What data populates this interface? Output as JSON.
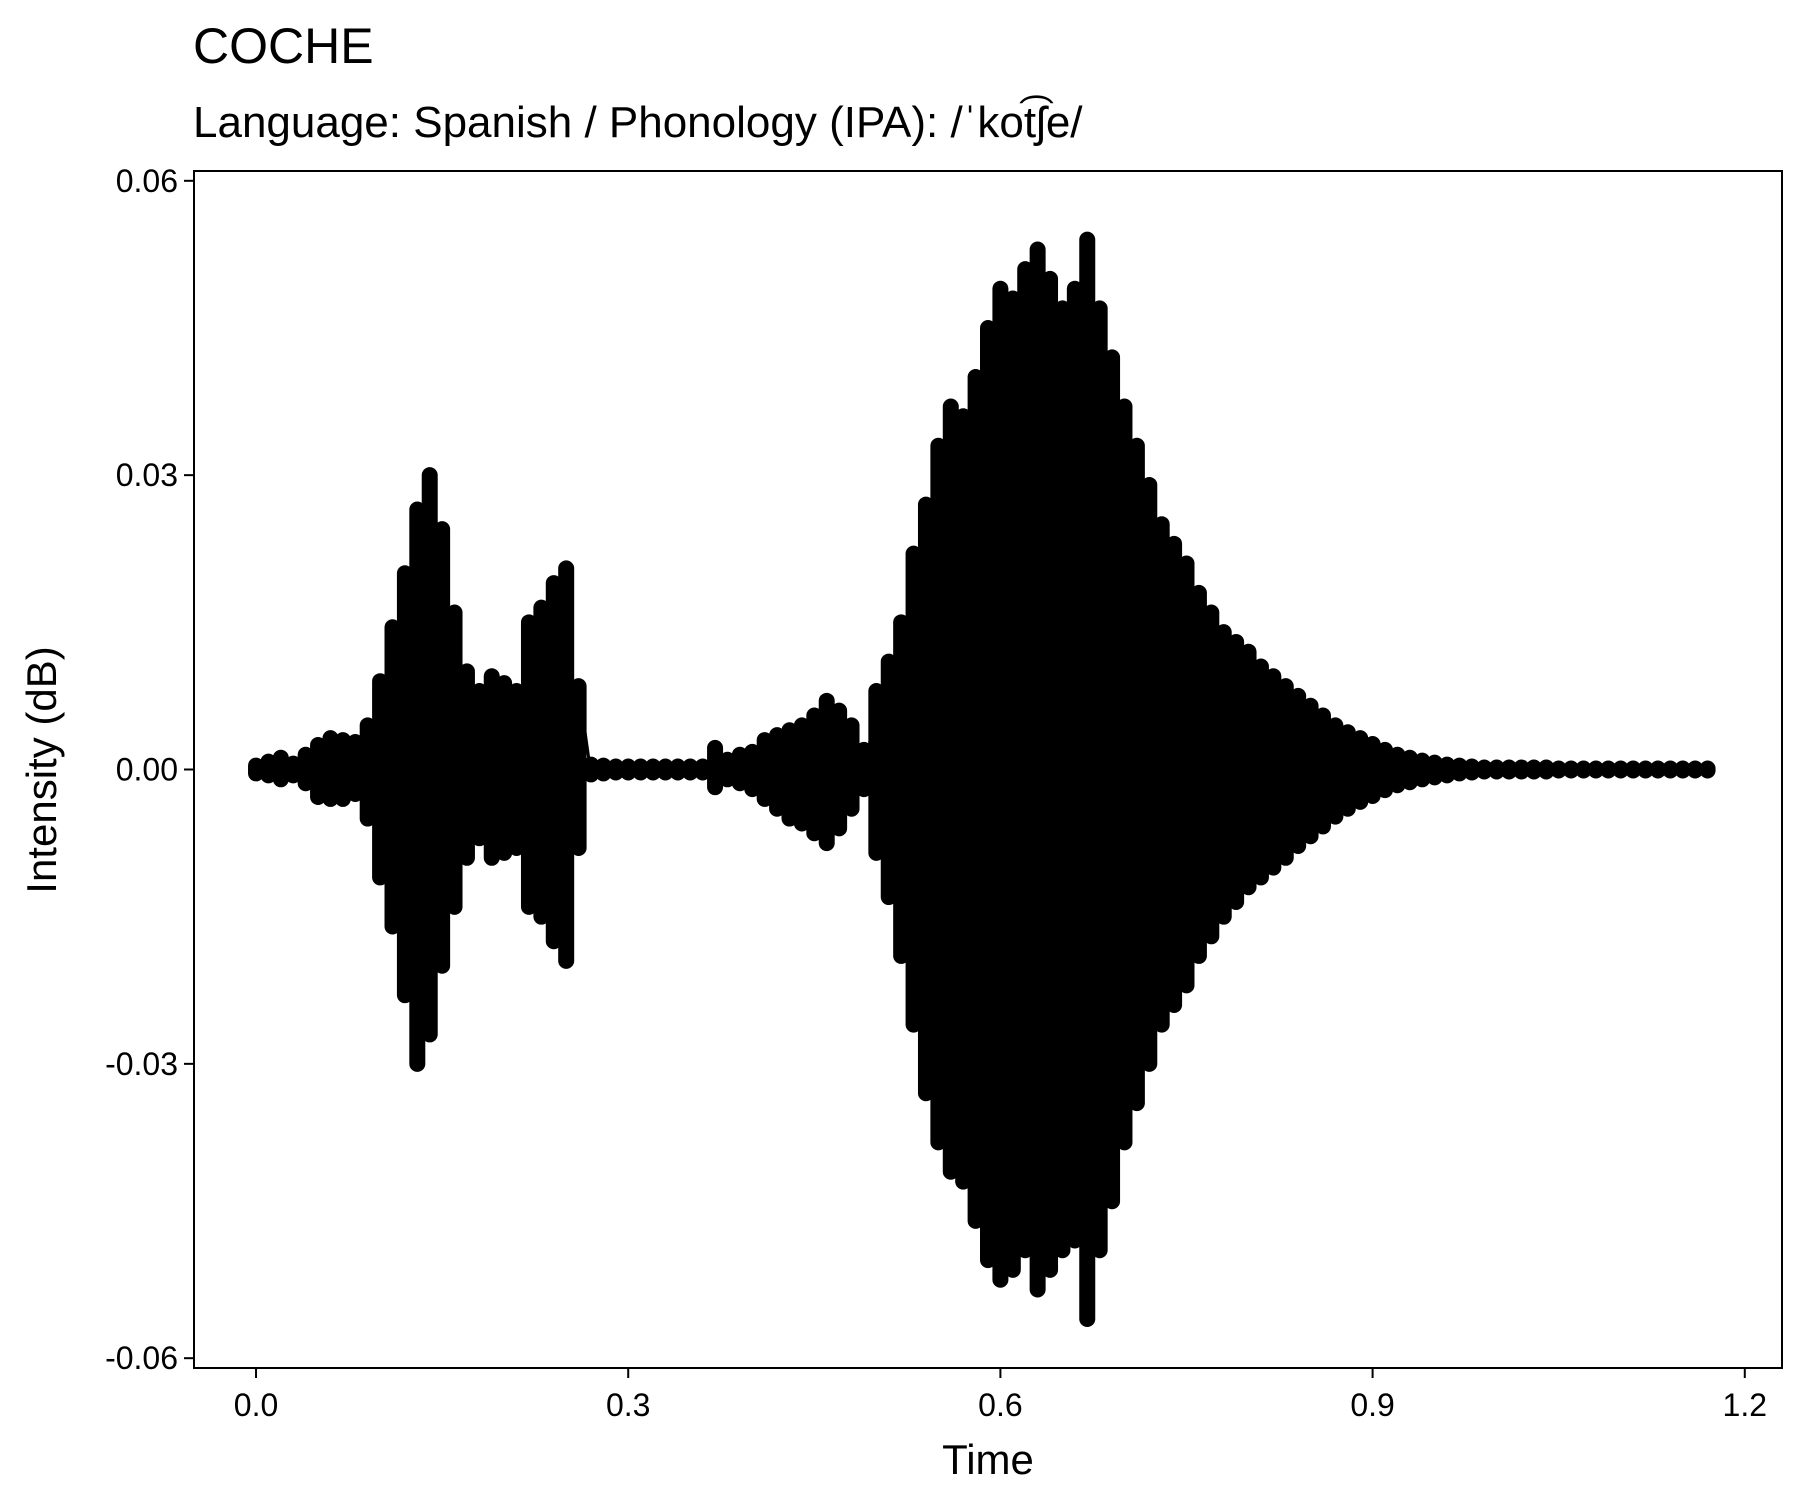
{
  "chart_data": {
    "type": "line",
    "title": "COCHE",
    "subtitle": "Language: Spanish / Phonology (IPA): /ˈkot͡ʃe/",
    "xlabel": "Time",
    "ylabel": "Intensity (dB)",
    "xlim": [
      -0.05,
      1.23
    ],
    "ylim": [
      -0.061,
      0.061
    ],
    "x_ticks": [
      0.0,
      0.3,
      0.6,
      0.9,
      1.2
    ],
    "x_tick_labels": [
      "0.0",
      "0.3",
      "0.6",
      "0.9",
      "1.2"
    ],
    "y_ticks": [
      0.06,
      0.03,
      0.0,
      -0.03,
      -0.06
    ],
    "y_tick_labels": [
      "0.06",
      "0.03",
      "0.00",
      "-0.03",
      "-0.06"
    ],
    "grid": false,
    "line_color": "#000000",
    "series": [
      {
        "values_note_free": true,
        "x": [
          0.0,
          0.01,
          0.02,
          0.03,
          0.04,
          0.05,
          0.06,
          0.07,
          0.08,
          0.09,
          0.1,
          0.11,
          0.12,
          0.13,
          0.14,
          0.15,
          0.16,
          0.17,
          0.18,
          0.19,
          0.2,
          0.21,
          0.22,
          0.23,
          0.24,
          0.25,
          0.26,
          0.27,
          0.28,
          0.29,
          0.3,
          0.31,
          0.32,
          0.33,
          0.34,
          0.35,
          0.36,
          0.37,
          0.38,
          0.39,
          0.4,
          0.41,
          0.42,
          0.43,
          0.44,
          0.45,
          0.46,
          0.47,
          0.48,
          0.49,
          0.5,
          0.51,
          0.52,
          0.53,
          0.54,
          0.55,
          0.56,
          0.57,
          0.58,
          0.59,
          0.6,
          0.61,
          0.62,
          0.63,
          0.64,
          0.65,
          0.66,
          0.67,
          0.68,
          0.69,
          0.7,
          0.71,
          0.72,
          0.73,
          0.74,
          0.75,
          0.76,
          0.77,
          0.78,
          0.79,
          0.8,
          0.81,
          0.82,
          0.83,
          0.84,
          0.85,
          0.86,
          0.87,
          0.88,
          0.89,
          0.9,
          0.91,
          0.92,
          0.93,
          0.94,
          0.95,
          0.96,
          0.97,
          0.98,
          0.99,
          1.0,
          1.01,
          1.02,
          1.03,
          1.04,
          1.05,
          1.06,
          1.07,
          1.08,
          1.09,
          1.1,
          1.11,
          1.12,
          1.13,
          1.14,
          1.15,
          1.16,
          1.17
        ],
        "upper": [
          0.0004,
          0.0008,
          0.0012,
          0.0006,
          0.0015,
          0.0025,
          0.0032,
          0.003,
          0.0028,
          0.0045,
          0.009,
          0.0145,
          0.02,
          0.0265,
          0.03,
          0.0245,
          0.016,
          0.01,
          0.008,
          0.0095,
          0.0088,
          0.008,
          0.015,
          0.0165,
          0.019,
          0.0205,
          0.0085,
          0.0005,
          0.0004,
          0.0003,
          0.0003,
          0.0003,
          0.0003,
          0.0003,
          0.0003,
          0.0003,
          0.0003,
          0.0022,
          0.001,
          0.0015,
          0.0018,
          0.003,
          0.0035,
          0.004,
          0.0045,
          0.0055,
          0.007,
          0.006,
          0.0045,
          0.002,
          0.008,
          0.011,
          0.015,
          0.022,
          0.027,
          0.033,
          0.037,
          0.036,
          0.04,
          0.045,
          0.049,
          0.048,
          0.051,
          0.053,
          0.05,
          0.047,
          0.049,
          0.054,
          0.047,
          0.042,
          0.037,
          0.033,
          0.029,
          0.025,
          0.023,
          0.021,
          0.018,
          0.016,
          0.014,
          0.013,
          0.012,
          0.0105,
          0.0095,
          0.0085,
          0.0075,
          0.0065,
          0.0055,
          0.0045,
          0.0038,
          0.0032,
          0.0026,
          0.002,
          0.0015,
          0.0012,
          0.0009,
          0.0007,
          0.0005,
          0.0004,
          0.0003,
          0.0002,
          0.0002,
          0.0002,
          0.0002,
          0.0002,
          0.0002,
          0.0001,
          0.0001,
          0.0001,
          0.0001,
          0.0001,
          0.0001,
          0.0001,
          0.0001,
          0.0001,
          0.0001,
          0.0001,
          0.0001,
          0.0001
        ],
        "lower": [
          -0.0004,
          -0.0006,
          -0.001,
          -0.0006,
          -0.0014,
          -0.0028,
          -0.003,
          -0.003,
          -0.0025,
          -0.005,
          -0.011,
          -0.016,
          -0.023,
          -0.03,
          -0.027,
          -0.02,
          -0.014,
          -0.009,
          -0.007,
          -0.009,
          -0.0085,
          -0.008,
          -0.014,
          -0.015,
          -0.0175,
          -0.0195,
          -0.008,
          -0.0005,
          -0.0004,
          -0.0003,
          -0.0003,
          -0.0003,
          -0.0003,
          -0.0003,
          -0.0003,
          -0.0003,
          -0.0003,
          -0.0018,
          -0.001,
          -0.0014,
          -0.002,
          -0.003,
          -0.004,
          -0.005,
          -0.0055,
          -0.0065,
          -0.0075,
          -0.006,
          -0.004,
          -0.002,
          -0.0085,
          -0.013,
          -0.019,
          -0.026,
          -0.033,
          -0.038,
          -0.041,
          -0.042,
          -0.046,
          -0.05,
          -0.052,
          -0.051,
          -0.049,
          -0.053,
          -0.051,
          -0.049,
          -0.048,
          -0.056,
          -0.049,
          -0.044,
          -0.038,
          -0.034,
          -0.03,
          -0.026,
          -0.024,
          -0.022,
          -0.019,
          -0.017,
          -0.015,
          -0.0135,
          -0.012,
          -0.011,
          -0.01,
          -0.009,
          -0.0078,
          -0.0068,
          -0.0058,
          -0.0048,
          -0.004,
          -0.0033,
          -0.0027,
          -0.0021,
          -0.0016,
          -0.0013,
          -0.001,
          -0.0008,
          -0.0006,
          -0.0004,
          -0.0003,
          -0.0002,
          -0.0002,
          -0.0002,
          -0.0002,
          -0.0002,
          -0.0002,
          -0.0001,
          -0.0001,
          -0.0001,
          -0.0001,
          -0.0001,
          -0.0001,
          -0.0001,
          -0.0001,
          -0.0001,
          -0.0001,
          -0.0001,
          -0.0001,
          -0.0001
        ]
      }
    ]
  }
}
